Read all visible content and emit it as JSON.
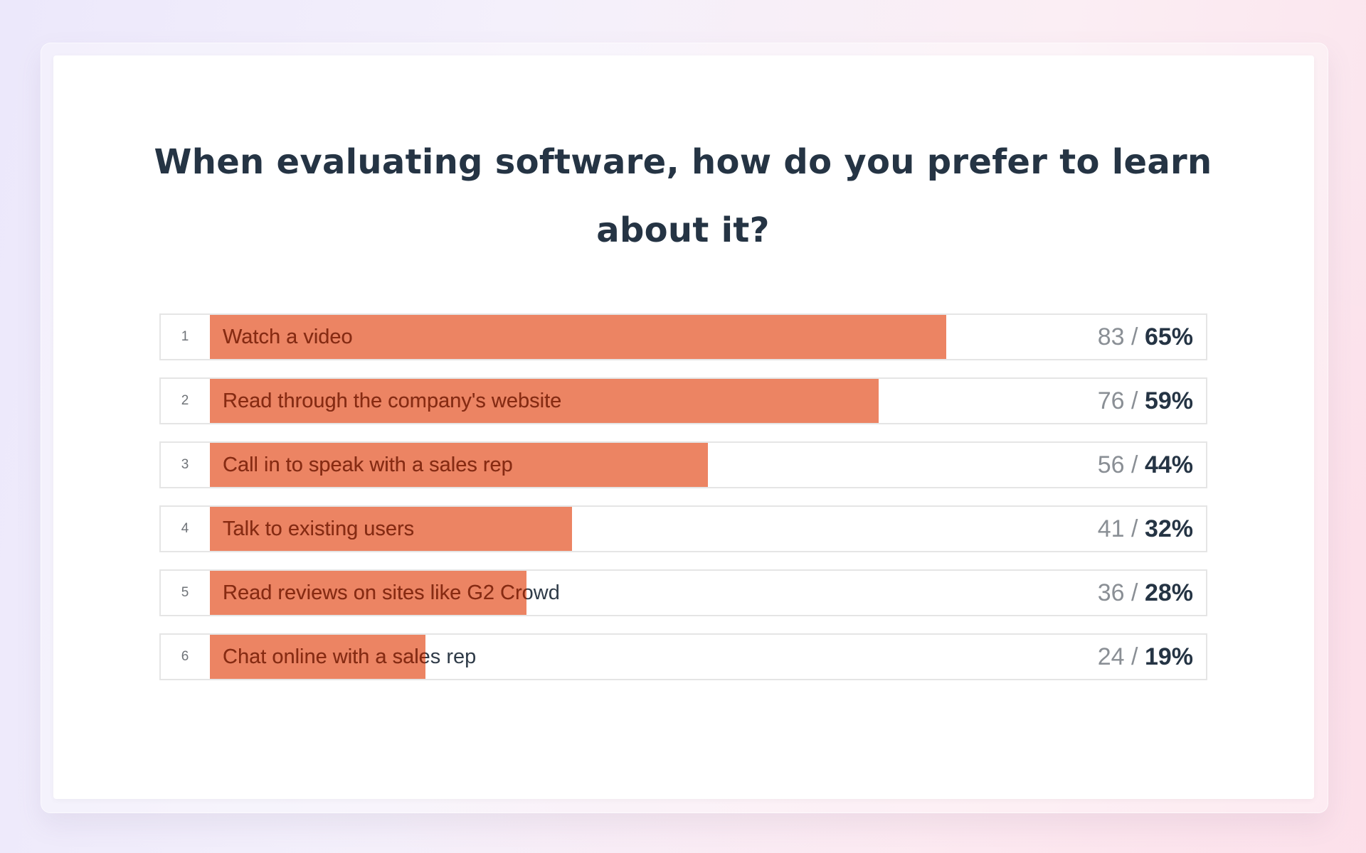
{
  "colors": {
    "bar": "#ec8463",
    "label_on_bar": "#8a2a10"
  },
  "page_title": "When evaluating software, how do you prefer to learn about it?",
  "chart_data": {
    "type": "bar",
    "orientation": "horizontal",
    "title": "When evaluating software, how do you prefer to learn about it?",
    "xlim": [
      0,
      100
    ],
    "grid": false,
    "rows": [
      {
        "rank": "1",
        "label": "Watch a video",
        "count": "83",
        "percent": "65%",
        "value": 65
      },
      {
        "rank": "2",
        "label": "Read through the company's website",
        "count": "76",
        "percent": "59%",
        "value": 59
      },
      {
        "rank": "3",
        "label": "Call in to speak with a sales rep",
        "count": "56",
        "percent": "44%",
        "value": 44
      },
      {
        "rank": "4",
        "label": "Talk to existing users",
        "count": "41",
        "percent": "32%",
        "value": 32
      },
      {
        "rank": "5",
        "label": "Read reviews on sites like G2 Crowd",
        "count": "36",
        "percent": "28%",
        "value": 28
      },
      {
        "rank": "6",
        "label": "Chat online with a sales rep",
        "count": "24",
        "percent": "19%",
        "value": 19
      }
    ]
  }
}
